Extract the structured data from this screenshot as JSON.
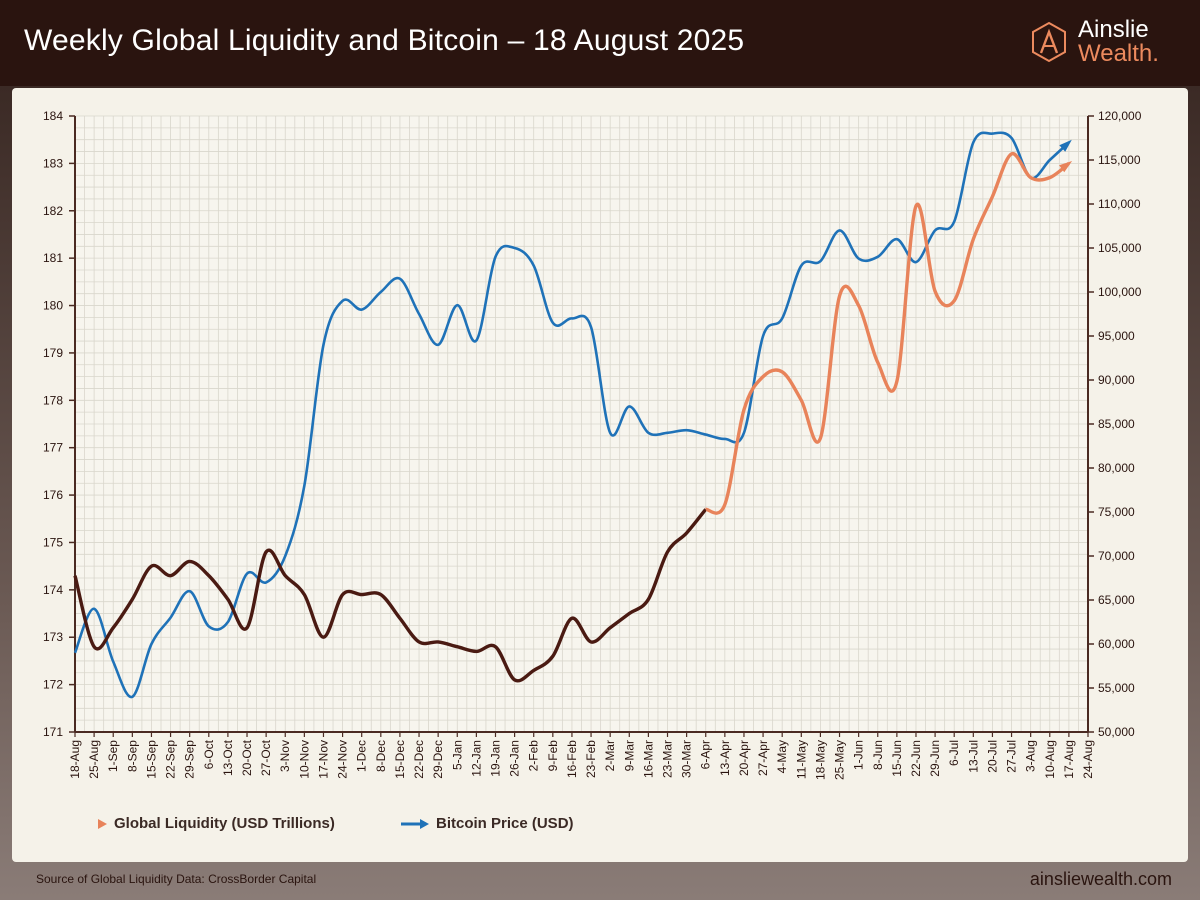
{
  "header": {
    "title": "Weekly Global Liquidity and Bitcoin – 18 August 2025",
    "logo_line1": "Ainslie",
    "logo_line2": "Wealth."
  },
  "footer": {
    "source": "Source of Global Liquidity Data: CrossBorder Capital",
    "website": "ainsliewealth.com"
  },
  "colors": {
    "liquidity_dark": "#4a1a12",
    "liquidity_light": "#e8835a",
    "bitcoin": "#1f72b8",
    "axis": "#4a2a22",
    "grid": "#d9d6cc"
  },
  "chart_data": {
    "type": "line",
    "title": "Weekly Global Liquidity and Bitcoin – 18 August 2025",
    "x": [
      "18-Aug",
      "25-Aug",
      "1-Sep",
      "8-Sep",
      "15-Sep",
      "22-Sep",
      "29-Sep",
      "6-Oct",
      "13-Oct",
      "20-Oct",
      "27-Oct",
      "3-Nov",
      "10-Nov",
      "17-Nov",
      "24-Nov",
      "1-Dec",
      "8-Dec",
      "15-Dec",
      "22-Dec",
      "29-Dec",
      "5-Jan",
      "12-Jan",
      "19-Jan",
      "26-Jan",
      "2-Feb",
      "9-Feb",
      "16-Feb",
      "23-Feb",
      "2-Mar",
      "9-Mar",
      "16-Mar",
      "23-Mar",
      "30-Mar",
      "6-Apr",
      "13-Apr",
      "20-Apr",
      "27-Apr",
      "4-May",
      "11-May",
      "18-May",
      "25-May",
      "1-Jun",
      "8-Jun",
      "15-Jun",
      "22-Jun",
      "29-Jun",
      "6-Jul",
      "13-Jul",
      "20-Jul",
      "27-Jul",
      "3-Aug",
      "10-Aug",
      "17-Aug",
      "24-Aug"
    ],
    "y_left": {
      "min": 171,
      "max": 184,
      "ticks": [
        171,
        172,
        173,
        174,
        175,
        176,
        177,
        178,
        179,
        180,
        181,
        182,
        183,
        184
      ]
    },
    "y_right": {
      "min": 50000,
      "max": 120000,
      "ticks": [
        50000,
        55000,
        60000,
        65000,
        70000,
        75000,
        80000,
        85000,
        90000,
        95000,
        100000,
        105000,
        110000,
        115000,
        120000
      ],
      "tick_labels": [
        "50,000",
        "55,000",
        "60,000",
        "65,000",
        "70,000",
        "75,000",
        "80,000",
        "85,000",
        "90,000",
        "95,000",
        "100,000",
        "105,000",
        "110,000",
        "115,000",
        "120,000"
      ]
    },
    "grid": true,
    "legend_position": "bottom-left",
    "series": [
      {
        "name": "Global Liquidity (USD Trillions)",
        "axis": "left",
        "values": [
          174.3,
          172.8,
          173.2,
          173.8,
          174.5,
          174.3,
          174.6,
          174.3,
          173.8,
          173.2,
          174.8,
          174.3,
          173.9,
          173.0,
          173.9,
          173.9,
          173.9,
          173.4,
          172.9,
          172.9,
          172.8,
          172.7,
          172.8,
          172.1,
          172.3,
          172.6,
          173.4,
          172.9,
          173.2,
          173.5,
          173.8,
          174.8,
          175.2,
          175.7,
          175.8,
          177.8,
          178.5,
          178.6,
          178.0,
          177.2,
          180.2,
          180.0,
          178.8,
          178.4,
          182.1,
          180.3,
          180.1,
          181.4,
          182.3,
          183.2,
          182.7,
          182.7,
          183.0,
          null
        ],
        "highlight_from_index": 33
      },
      {
        "name": "Bitcoin Price (USD)",
        "axis": "right",
        "values": [
          59000,
          64000,
          58000,
          54000,
          60000,
          63000,
          66000,
          62000,
          62500,
          68000,
          67000,
          70000,
          78000,
          94000,
          99000,
          98000,
          100000,
          101500,
          97500,
          94000,
          98500,
          94500,
          104000,
          105000,
          103000,
          96500,
          97000,
          96000,
          84000,
          87000,
          84000,
          84000,
          84300,
          83800,
          83300,
          84000,
          95000,
          97000,
          103000,
          103500,
          107000,
          103800,
          104000,
          106000,
          103400,
          107000,
          108000,
          117000,
          118000,
          117500,
          113000,
          115000,
          117000,
          null
        ]
      }
    ]
  }
}
